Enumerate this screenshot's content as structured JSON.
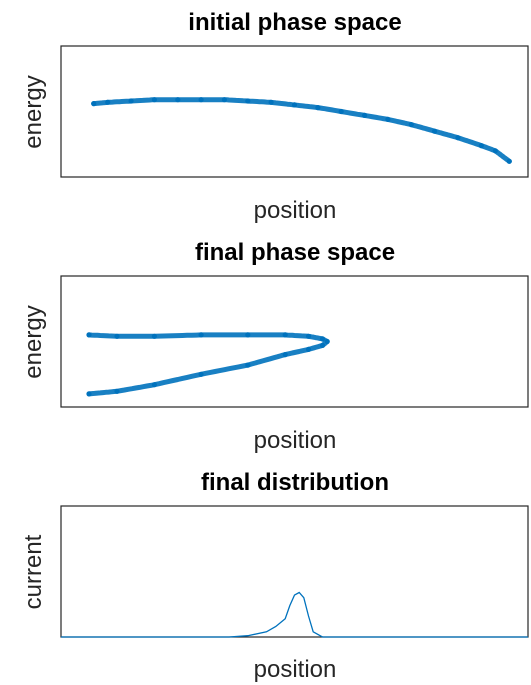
{
  "chart_data": [
    {
      "type": "scatter",
      "title": "initial phase space",
      "xlabel": "position",
      "ylabel": "energy",
      "xlim": [
        0,
        1
      ],
      "ylim": [
        0,
        1
      ],
      "xticks": [],
      "yticks": [],
      "color": "#0072BD",
      "series": [
        {
          "x": [
            0.07,
            0.1,
            0.15,
            0.2,
            0.25,
            0.3,
            0.35,
            0.4,
            0.45,
            0.5,
            0.55,
            0.6,
            0.65,
            0.7,
            0.75,
            0.8,
            0.85,
            0.9,
            0.93,
            0.96
          ],
          "y": [
            0.56,
            0.57,
            0.58,
            0.59,
            0.59,
            0.59,
            0.59,
            0.58,
            0.57,
            0.55,
            0.53,
            0.5,
            0.47,
            0.44,
            0.4,
            0.35,
            0.3,
            0.24,
            0.2,
            0.12
          ]
        }
      ]
    },
    {
      "type": "scatter",
      "title": "final phase space",
      "xlabel": "position",
      "ylabel": "energy",
      "xlim": [
        0,
        1
      ],
      "ylim": [
        0,
        1
      ],
      "xticks": [],
      "yticks": [],
      "color": "#0072BD",
      "series": [
        {
          "x": [
            0.06,
            0.12,
            0.2,
            0.3,
            0.4,
            0.48,
            0.53,
            0.56,
            0.57,
            0.56,
            0.53,
            0.48,
            0.4,
            0.3,
            0.2,
            0.12,
            0.06
          ],
          "y": [
            0.55,
            0.54,
            0.54,
            0.55,
            0.55,
            0.55,
            0.54,
            0.52,
            0.5,
            0.47,
            0.44,
            0.4,
            0.32,
            0.25,
            0.17,
            0.12,
            0.1
          ]
        }
      ]
    },
    {
      "type": "line",
      "title": "final distribution",
      "xlabel": "position",
      "ylabel": "current",
      "xlim": [
        0,
        1
      ],
      "ylim": [
        0,
        1
      ],
      "xticks": [],
      "yticks": [],
      "color": "#0072BD",
      "series": [
        {
          "x": [
            0.0,
            0.3,
            0.36,
            0.4,
            0.44,
            0.46,
            0.48,
            0.49,
            0.5,
            0.51,
            0.52,
            0.53,
            0.54,
            0.56,
            0.6,
            1.0
          ],
          "y": [
            0.0,
            0.0,
            0.0,
            0.01,
            0.04,
            0.08,
            0.14,
            0.24,
            0.32,
            0.34,
            0.3,
            0.16,
            0.04,
            0.0,
            0.0,
            0.0
          ]
        }
      ]
    }
  ]
}
